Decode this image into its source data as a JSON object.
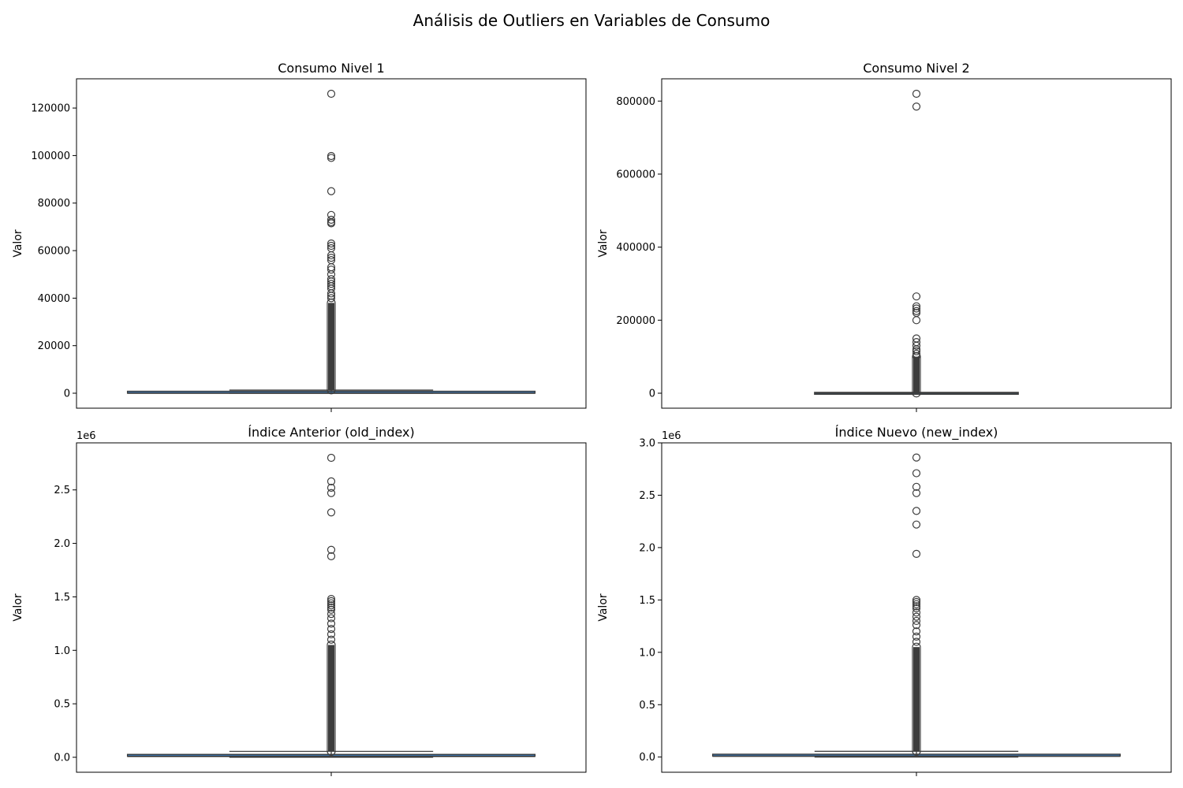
{
  "figure": {
    "title": "Análisis de Outliers en Variables de Consumo"
  },
  "chart_data": [
    {
      "type": "boxplot",
      "title": "Consumo Nivel 1",
      "ylabel": "Valor",
      "xlabel": "",
      "offset_label": "",
      "ylim": [
        -6300,
        132300
      ],
      "yticks": [
        0,
        20000,
        40000,
        60000,
        80000,
        100000,
        120000
      ],
      "ytick_labels": [
        "0",
        "20000",
        "40000",
        "60000",
        "80000",
        "100000",
        "120000"
      ],
      "box": {
        "whisker_low": 0,
        "q1": 0,
        "median": 0,
        "q3": 500,
        "whisker_high": 1300
      },
      "outliers": [
        126000,
        99800,
        99000,
        85000,
        75000,
        73000,
        72000,
        71500,
        63000,
        62000,
        61000,
        58000,
        57000,
        56000,
        53000,
        52000,
        50000,
        48000,
        47000,
        46000,
        45000,
        44000,
        42000,
        41000,
        40000
      ],
      "outlier_band": [
        1400,
        38000
      ],
      "color": "#3b75af"
    },
    {
      "type": "boxplot",
      "title": "Consumo Nivel 2",
      "ylabel": "Valor",
      "xlabel": "",
      "offset_label": "",
      "ylim": [
        -41000,
        861000
      ],
      "yticks": [
        0,
        200000,
        400000,
        600000,
        800000
      ],
      "ytick_labels": [
        "0",
        "200000",
        "400000",
        "600000",
        "800000"
      ],
      "box": {
        "whisker_low": 0,
        "q1": 0,
        "median": 0,
        "q3": 200,
        "whisker_high": 500
      },
      "outliers": [
        820000,
        785000,
        265000,
        238000,
        232000,
        225000,
        220000,
        200000,
        150000,
        140000,
        130000,
        120000,
        115000,
        108000,
        102000
      ],
      "outlier_band": [
        600,
        100000
      ],
      "color": "#3b75af"
    },
    {
      "type": "boxplot",
      "title": "Índice Anterior (old_index)",
      "ylabel": "Valor",
      "xlabel": "",
      "offset_label": "1e6",
      "ylim": [
        -140000,
        2940000
      ],
      "yticks": [
        0,
        500000,
        1000000,
        1500000,
        2000000,
        2500000
      ],
      "ytick_labels": [
        "0.0",
        "0.5",
        "1.0",
        "1.5",
        "2.0",
        "2.5"
      ],
      "box": {
        "whisker_low": 0,
        "q1": 2000,
        "median": 8000,
        "q3": 20000,
        "whisker_high": 55000
      },
      "outliers": [
        2800000,
        2580000,
        2520000,
        2470000,
        2290000,
        1940000,
        1880000,
        1480000,
        1460000,
        1440000,
        1420000,
        1400000,
        1380000,
        1340000,
        1300000,
        1250000,
        1200000,
        1150000,
        1100000
      ],
      "outlier_band": [
        56000,
        1050000
      ],
      "color": "#3b75af"
    },
    {
      "type": "boxplot",
      "title": "Índice Nuevo (new_index)",
      "ylabel": "Valor",
      "xlabel": "",
      "offset_label": "1e6",
      "ylim": [
        -145000,
        3000000
      ],
      "yticks": [
        0,
        500000,
        1000000,
        1500000,
        2000000,
        2500000,
        3000000
      ],
      "ytick_labels": [
        "0.0",
        "0.5",
        "1.0",
        "1.5",
        "2.0",
        "2.5",
        "3.0"
      ],
      "box": {
        "whisker_low": 0,
        "q1": 2000,
        "median": 8000,
        "q3": 20000,
        "whisker_high": 55000
      },
      "outliers": [
        2860000,
        2710000,
        2580000,
        2520000,
        2350000,
        2220000,
        1940000,
        1500000,
        1480000,
        1460000,
        1440000,
        1420000,
        1380000,
        1340000,
        1300000,
        1260000,
        1200000,
        1150000,
        1100000
      ],
      "outlier_band": [
        56000,
        1050000
      ],
      "color": "#3b75af"
    }
  ]
}
